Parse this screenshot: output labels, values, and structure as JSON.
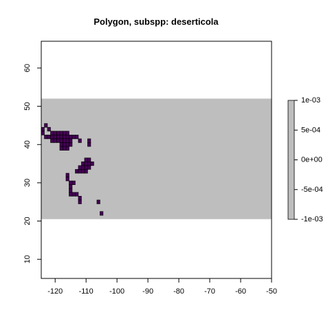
{
  "chart_data": {
    "type": "heatmap",
    "title": "Polygon, subspp: deserticola",
    "xlabel": "",
    "ylabel": "",
    "xlim": [
      -124.5,
      -50
    ],
    "ylim": [
      5,
      67
    ],
    "x_ticks": [
      -120,
      -110,
      -100,
      -90,
      -80,
      -70,
      -60,
      -50
    ],
    "y_ticks": [
      10,
      20,
      30,
      40,
      50,
      60
    ],
    "x_tick_labels": [
      "-120",
      "-110",
      "-100",
      "-90",
      "-80",
      "-70",
      "-60",
      "-50"
    ],
    "y_tick_labels": [
      "10",
      "20",
      "30",
      "40",
      "50",
      "60"
    ],
    "raster_extent": {
      "xmin": -124.5,
      "xmax": -50,
      "ymin": 20.5,
      "ymax": 52
    },
    "raster_fill_color": "#bebebe",
    "presence_color": "#440154",
    "cell_size": 1,
    "presence_cells": [
      [
        -124,
        44
      ],
      [
        -124,
        43
      ],
      [
        -123,
        45
      ],
      [
        -122,
        44
      ],
      [
        -121,
        43
      ],
      [
        -120,
        43
      ],
      [
        -119,
        43
      ],
      [
        -118,
        43
      ],
      [
        -117,
        43
      ],
      [
        -116,
        43
      ],
      [
        -123,
        42
      ],
      [
        -122,
        42
      ],
      [
        -121,
        42
      ],
      [
        -120,
        42
      ],
      [
        -119,
        42
      ],
      [
        -118,
        42
      ],
      [
        -117,
        42
      ],
      [
        -116,
        42
      ],
      [
        -115,
        42
      ],
      [
        -114,
        42
      ],
      [
        -113,
        42
      ],
      [
        -121,
        41
      ],
      [
        -120,
        41
      ],
      [
        -119,
        41
      ],
      [
        -118,
        41
      ],
      [
        -117,
        41
      ],
      [
        -116,
        41
      ],
      [
        -115,
        41
      ],
      [
        -112,
        41
      ],
      [
        -109,
        41
      ],
      [
        -118,
        40
      ],
      [
        -117,
        40
      ],
      [
        -116,
        40
      ],
      [
        -115,
        40
      ],
      [
        -109,
        40
      ],
      [
        -118,
        39
      ],
      [
        -117,
        39
      ],
      [
        -116,
        39
      ],
      [
        -110,
        36
      ],
      [
        -109,
        36
      ],
      [
        -111,
        35
      ],
      [
        -110,
        35
      ],
      [
        -109,
        35
      ],
      [
        -108,
        35
      ],
      [
        -112,
        34
      ],
      [
        -111,
        34
      ],
      [
        -110,
        34
      ],
      [
        -109,
        34
      ],
      [
        -113,
        33
      ],
      [
        -112,
        33
      ],
      [
        -111,
        33
      ],
      [
        -110,
        33
      ],
      [
        -116,
        32
      ],
      [
        -116,
        31
      ],
      [
        -115,
        30
      ],
      [
        -114,
        30
      ],
      [
        -115,
        29
      ],
      [
        -115,
        28
      ],
      [
        -115,
        27
      ],
      [
        -114,
        27
      ],
      [
        -113,
        27
      ],
      [
        -112,
        26
      ],
      [
        -112,
        25
      ],
      [
        -106,
        25
      ],
      [
        -105,
        22
      ]
    ],
    "legend": {
      "position": "right",
      "ticks": [
        0.001,
        0.0005,
        0,
        -0.0005,
        -0.001
      ],
      "tick_labels": [
        "1e-03",
        "5e-04",
        "0e+00",
        "-5e-04",
        "-1e-03"
      ],
      "color": "#bebebe"
    }
  }
}
